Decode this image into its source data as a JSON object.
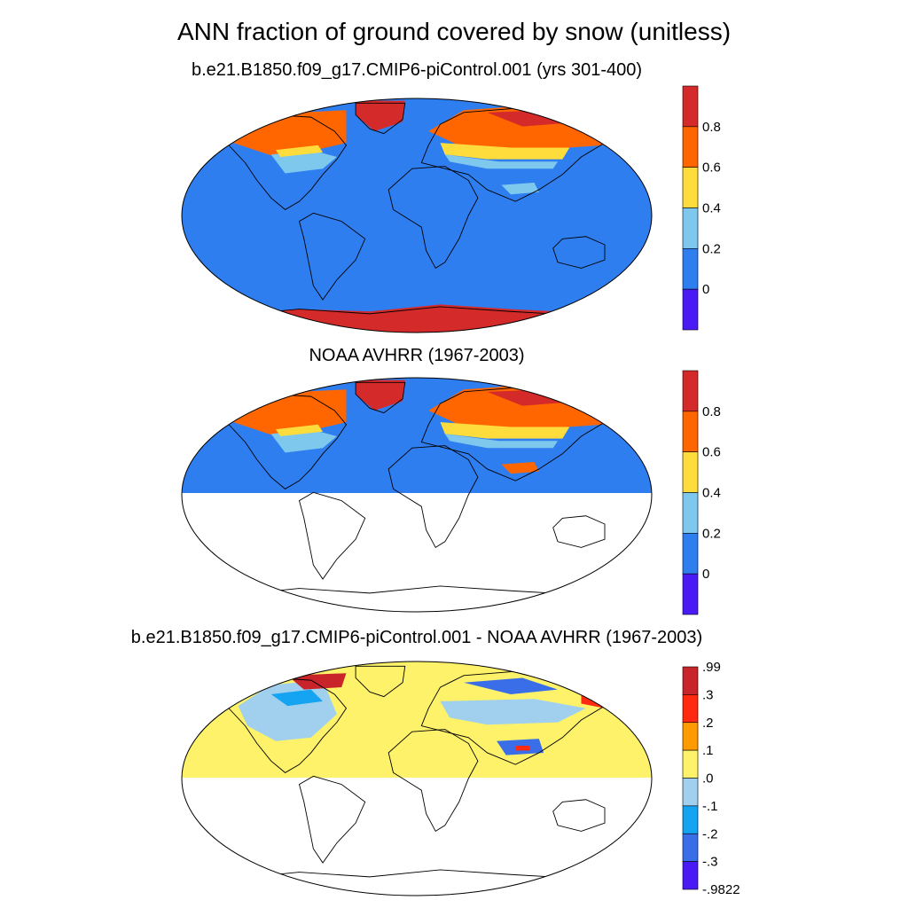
{
  "title": "ANN fraction of ground covered by snow (unitless)",
  "colors": {
    "ocean_blue": "#2e7ef0",
    "antarctica_red": "#d42a2a",
    "diff_zero": "#fdf26a",
    "coastline": "#000000",
    "no_data": "#ffffff"
  },
  "panels": [
    {
      "subtitle": "b.e21.B1850.f09_g17.CMIP6-piControl.001 (yrs 301-400)",
      "projection": "Robinson",
      "coverage": "global",
      "colorbar": {
        "ticks": [
          "0.8",
          "0.6",
          "0.4",
          "0.2",
          "0"
        ],
        "colors": [
          "#d42a2a",
          "#ff6600",
          "#fedc3c",
          "#7ec8ee",
          "#2e7ef0",
          "#4a1af5"
        ]
      }
    },
    {
      "subtitle": "NOAA AVHRR (1967-2003)",
      "projection": "Robinson",
      "coverage": "northern hemisphere only",
      "colorbar": {
        "ticks": [
          "0.8",
          "0.6",
          "0.4",
          "0.2",
          "0"
        ],
        "colors": [
          "#d42a2a",
          "#ff6600",
          "#fedc3c",
          "#7ec8ee",
          "#2e7ef0",
          "#4a1af5"
        ]
      }
    },
    {
      "subtitle": "b.e21.B1850.f09_g17.CMIP6-piControl.001 - NOAA AVHRR (1967-2003)",
      "projection": "Robinson",
      "coverage": "northern hemisphere only",
      "colorbar": {
        "ticks": [
          ".99",
          ".3",
          ".2",
          ".1",
          ".0",
          "-.1",
          "-.2",
          "-.3",
          "-.9822"
        ],
        "colors": [
          "#c8242a",
          "#ff2a10",
          "#ff9a00",
          "#fdf26a",
          "#a0d0ee",
          "#15a4f2",
          "#3a6ee8",
          "#4a1af5"
        ]
      }
    }
  ],
  "chart_data": {
    "type": "heatmap",
    "variable": "fraction of ground covered by snow",
    "units": "unitless",
    "season": "ANN",
    "maps": [
      {
        "name": "b.e21.B1850.f09_g17.CMIP6-piControl.001 (yrs 301-400)",
        "levels": [
          0,
          0.2,
          0.4,
          0.6,
          0.8
        ],
        "regions": {
          "ocean": 0.0,
          "greenland": 0.9,
          "antarctica": 0.95,
          "siberia": 0.7,
          "northern_canada": 0.7,
          "tibetan_plateau": 0.4
        }
      },
      {
        "name": "NOAA AVHRR (1967-2003)",
        "levels": [
          0,
          0.2,
          0.4,
          0.6,
          0.8
        ],
        "regions": {
          "ocean": 0.0,
          "greenland": 0.9,
          "siberia": 0.7,
          "northern_canada": 0.7,
          "tibetan_plateau": 0.6
        }
      },
      {
        "name": "b.e21.B1850.f09_g17.CMIP6-piControl.001 - NOAA AVHRR (1967-2003)",
        "levels": [
          -0.9822,
          -0.3,
          -0.2,
          -0.1,
          0.0,
          0.1,
          0.2,
          0.3,
          0.99
        ],
        "regions": {
          "ocean": 0.05,
          "north_america": -0.05,
          "canadian_archipelago": 0.3,
          "tibetan_plateau": -0.2
        }
      }
    ]
  }
}
